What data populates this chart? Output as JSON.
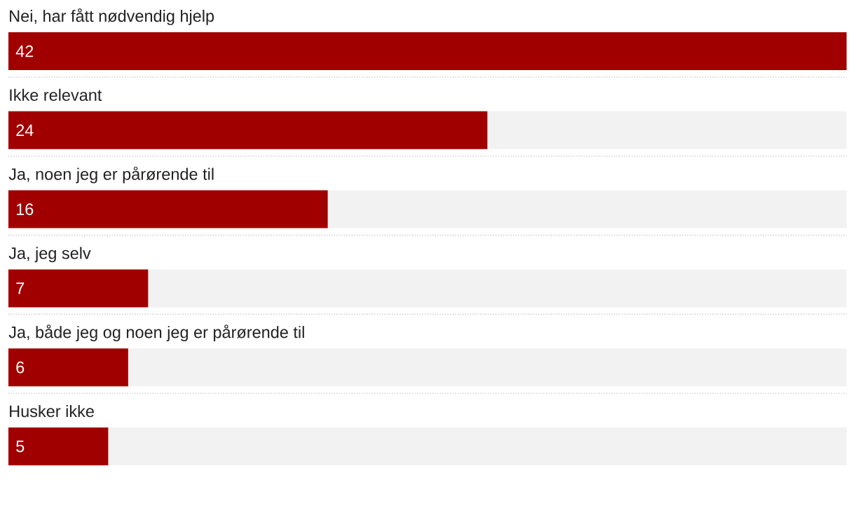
{
  "chart_data": {
    "type": "bar",
    "orientation": "horizontal",
    "categories": [
      "Nei, har fått nødvendig hjelp",
      "Ikke relevant",
      "Ja, noen jeg er pårørende til",
      "Ja, jeg selv",
      "Ja, både jeg og noen jeg er pårørende til",
      "Husker ikke"
    ],
    "values": [
      42,
      24,
      16,
      7,
      6,
      5
    ],
    "color": "#a00000",
    "data_labels": true
  }
}
